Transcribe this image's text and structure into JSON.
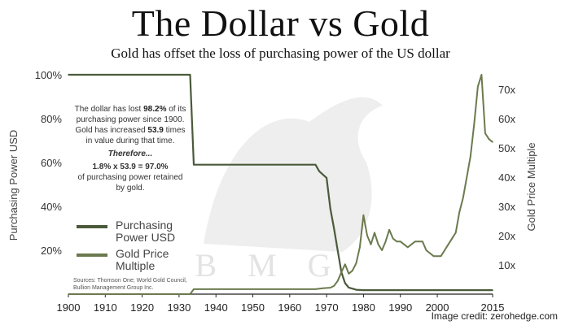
{
  "header": {
    "title": "The Dollar vs Gold",
    "subtitle": "Gold has offset the loss of purchasing power of the US dollar"
  },
  "annotation": {
    "line1": "The dollar has lost",
    "lost_pct": "98.2%",
    "line2": "of its purchasing power since 1900.  Gold has increased",
    "multiple": "53.9",
    "line3": "times in value during that time.",
    "therefore": "Therefore...",
    "formula": "1.8% x 53.9 = 97.0%",
    "line4": "of purchasing power retained by gold."
  },
  "legend": {
    "purchasing_power": "Purchasing Power USD",
    "gold_multiple": "Gold Price Multiple"
  },
  "sources": "Sources: Thomson One; World Gold Council, Bullion Management Group Inc.",
  "watermark": "B M G",
  "credit": "Image credit: zerohedge.com",
  "colors": {
    "purchasing_power_line": "#4a5a3a",
    "gold_line": "#6b7a4e",
    "axis_text": "#333333",
    "watermark": "#e3e3e3"
  },
  "chart_data": {
    "type": "line",
    "title": "The Dollar vs Gold",
    "subtitle": "Gold has offset the loss of purchasing power of the US dollar",
    "xlabel": "",
    "ylabel": "Purchasing Power USD",
    "y2label": "Gold Price Multiple",
    "xlim": [
      1900,
      2015
    ],
    "ylim": [
      0,
      100
    ],
    "y2lim": [
      0,
      75
    ],
    "x_ticks": [
      1900,
      1910,
      1920,
      1930,
      1940,
      1950,
      1960,
      1970,
      1980,
      1990,
      2000,
      2015
    ],
    "y_ticks": [
      "20%",
      "40%",
      "60%",
      "80%",
      "100%"
    ],
    "y2_ticks": [
      "10x",
      "20x",
      "30x",
      "40x",
      "50x",
      "60x",
      "70x"
    ],
    "grid": false,
    "series": [
      {
        "name": "Purchasing Power USD",
        "axis": "left",
        "points": [
          [
            1900,
            100
          ],
          [
            1933,
            100
          ],
          [
            1934,
            59
          ],
          [
            1967,
            59
          ],
          [
            1968,
            56
          ],
          [
            1970,
            53
          ],
          [
            1971,
            39
          ],
          [
            1972,
            30
          ],
          [
            1973,
            20
          ],
          [
            1974,
            10
          ],
          [
            1975,
            5
          ],
          [
            1976,
            3
          ],
          [
            1978,
            2
          ],
          [
            1980,
            1.8
          ],
          [
            2015,
            1.8
          ]
        ]
      },
      {
        "name": "Gold Price Multiple",
        "axis": "right",
        "points": [
          [
            1900,
            0
          ],
          [
            1933,
            0
          ],
          [
            1934,
            1.7
          ],
          [
            1967,
            1.7
          ],
          [
            1969,
            2
          ],
          [
            1971,
            2.2
          ],
          [
            1972,
            2.8
          ],
          [
            1973,
            4.5
          ],
          [
            1974,
            7.5
          ],
          [
            1975,
            10.2
          ],
          [
            1976,
            7
          ],
          [
            1977,
            8
          ],
          [
            1978,
            10.5
          ],
          [
            1979,
            16
          ],
          [
            1980,
            27
          ],
          [
            1981,
            20
          ],
          [
            1982,
            17
          ],
          [
            1983,
            21
          ],
          [
            1984,
            17
          ],
          [
            1985,
            15
          ],
          [
            1986,
            18
          ],
          [
            1987,
            22
          ],
          [
            1988,
            19
          ],
          [
            1989,
            18
          ],
          [
            1990,
            18
          ],
          [
            1991,
            17
          ],
          [
            1992,
            16
          ],
          [
            1993,
            17
          ],
          [
            1994,
            18
          ],
          [
            1995,
            18
          ],
          [
            1996,
            18
          ],
          [
            1997,
            15
          ],
          [
            1998,
            14
          ],
          [
            1999,
            13
          ],
          [
            2000,
            13
          ],
          [
            2001,
            13
          ],
          [
            2002,
            15
          ],
          [
            2003,
            17
          ],
          [
            2004,
            19
          ],
          [
            2005,
            21
          ],
          [
            2006,
            28
          ],
          [
            2007,
            33
          ],
          [
            2008,
            40
          ],
          [
            2009,
            47
          ],
          [
            2010,
            58
          ],
          [
            2011,
            71
          ],
          [
            2012,
            75
          ],
          [
            2013,
            55
          ],
          [
            2014,
            53
          ],
          [
            2015,
            52
          ]
        ]
      }
    ]
  }
}
